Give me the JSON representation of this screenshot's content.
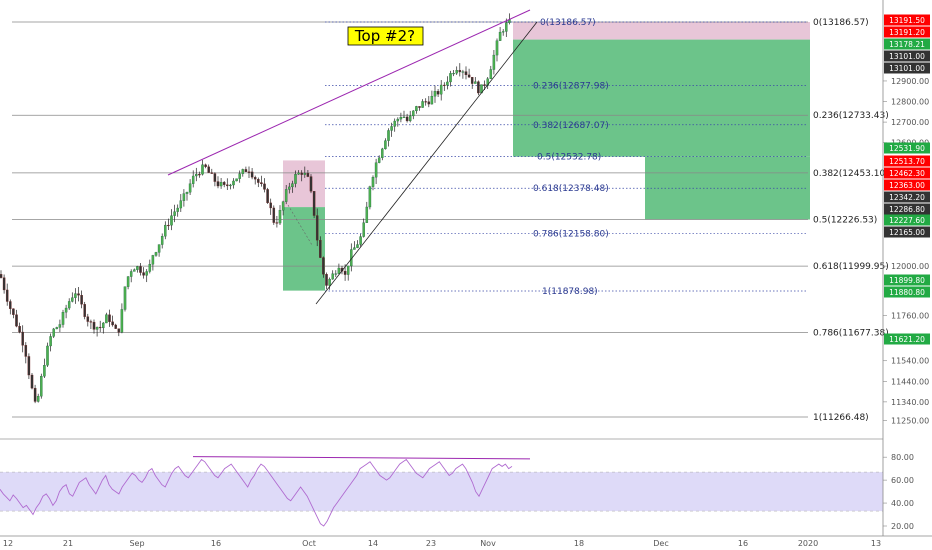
{
  "chart_data": {
    "type": "candlestick",
    "symbol": "",
    "annotation": "Top #2?",
    "price_axis": {
      "range": [
        11180,
        13300
      ],
      "ticks": [
        13300,
        13191.5,
        12900,
        12800,
        12700,
        12600,
        12000,
        11760,
        11540,
        11440,
        11340,
        11250
      ],
      "tick_labels": [
        "13300.00",
        "12900.00",
        "12800.00",
        "12700.00",
        "12600.00",
        "12000.00",
        "11760.00",
        "11540.00",
        "11440.00",
        "11340.00",
        "11250.00"
      ],
      "visible_ticks": [
        13300,
        12900,
        12800,
        12700,
        12600,
        12000,
        11760,
        11540,
        11440,
        11340,
        11250
      ]
    },
    "time_axis": {
      "ticks": [
        "12",
        "21",
        "Sep",
        "16",
        "Oct",
        "14",
        "23",
        "Nov",
        "18",
        "Dec",
        "16",
        "2020",
        "13"
      ]
    },
    "fib_wide": {
      "levels": [
        {
          "label": "0(13186.57)",
          "price": 13186.57
        },
        {
          "label": "0.236(12733.43)",
          "price": 12733.43
        },
        {
          "label": "0.382(12453.10)",
          "price": 12453.1
        },
        {
          "label": "0.5(12226.53)",
          "price": 12226.53
        },
        {
          "label": "0.618(11999.95)",
          "price": 11999.95
        },
        {
          "label": "0.786(11677.38)",
          "price": 11677.38
        },
        {
          "label": "1(11266.48)",
          "price": 11266.48
        }
      ]
    },
    "fib_narrow": {
      "levels": [
        {
          "label": "0(13186.57)",
          "price": 13186.57
        },
        {
          "label": "0.236(12877.98)",
          "price": 12877.98
        },
        {
          "label": "0.382(12687.07)",
          "price": 12687.07
        },
        {
          "label": "0.5(12532.78)",
          "price": 12532.78
        },
        {
          "label": "0.618(12378.48)",
          "price": 12378.48
        },
        {
          "label": "0.786(12158.80)",
          "price": 12158.8
        },
        {
          "label": "1(11878.98)",
          "price": 11878.98
        }
      ]
    },
    "price_tags": [
      {
        "text": "13191.50",
        "price": 13191.5,
        "color": "#ff0000"
      },
      {
        "text": "13191.20",
        "price": 13191.2,
        "color": "#ff0000"
      },
      {
        "text": "13178.21",
        "price": 13178.21,
        "color": "#22aa44"
      },
      {
        "text": "13101.00",
        "price": 13101.0,
        "color": "#333333"
      },
      {
        "text": "13101.00",
        "price": 13101.0,
        "color": "#333333"
      },
      {
        "text": "12531.90",
        "price": 12531.9,
        "color": "#22aa44"
      },
      {
        "text": "12513.70",
        "price": 12513.7,
        "color": "#ff0000"
      },
      {
        "text": "12462.30",
        "price": 12462.3,
        "color": "#ff0000"
      },
      {
        "text": "12363.00",
        "price": 12363.0,
        "color": "#ff0000"
      },
      {
        "text": "12342.20",
        "price": 12342.2,
        "color": "#333333"
      },
      {
        "text": "12286.80",
        "price": 12286.8,
        "color": "#333333"
      },
      {
        "text": "12227.60",
        "price": 12227.6,
        "color": "#22aa44"
      },
      {
        "text": "12165.00",
        "price": 12165.0,
        "color": "#333333"
      },
      {
        "text": "11899.80",
        "price": 11899.8,
        "color": "#22aa44"
      },
      {
        "text": "11880.80",
        "price": 11880.8,
        "color": "#22aa44"
      },
      {
        "text": "11621.20",
        "price": 11621.2,
        "color": "#22aa44"
      }
    ],
    "rsi": {
      "range": [
        15,
        88
      ],
      "ticks": [
        80,
        60,
        40,
        20
      ],
      "tick_labels": [
        "80.00",
        "60.00",
        "40.00",
        "20.00"
      ],
      "band": [
        33,
        67
      ],
      "values": [
        52,
        48,
        45,
        42,
        47,
        44,
        40,
        36,
        38,
        34,
        30,
        36,
        40,
        46,
        48,
        44,
        38,
        42,
        50,
        54,
        56,
        48,
        46,
        52,
        58,
        60,
        62,
        56,
        52,
        48,
        54,
        60,
        64,
        56,
        52,
        50,
        48,
        54,
        58,
        62,
        66,
        64,
        60,
        58,
        62,
        68,
        70,
        64,
        60,
        56,
        54,
        60,
        66,
        70,
        72,
        68,
        64,
        62,
        66,
        70,
        74,
        78,
        76,
        72,
        68,
        64,
        62,
        66,
        70,
        72,
        74,
        70,
        66,
        62,
        58,
        54,
        60,
        64,
        70,
        74,
        72,
        68,
        64,
        60,
        56,
        52,
        48,
        44,
        42,
        46,
        50,
        54,
        50,
        46,
        40,
        34,
        28,
        22,
        20,
        24,
        30,
        36,
        40,
        44,
        48,
        52,
        56,
        60,
        64,
        70,
        72,
        74,
        76,
        72,
        68,
        64,
        62,
        60,
        62,
        66,
        70,
        74,
        76,
        78,
        74,
        70,
        66,
        64,
        62,
        66,
        70,
        72,
        74,
        76,
        72,
        68,
        64,
        66,
        70,
        72,
        74,
        70,
        64,
        58,
        50,
        46,
        52,
        58,
        64,
        70,
        72,
        74,
        72,
        74,
        70,
        72
      ]
    },
    "colors": {
      "up": "#26a69a",
      "down": "#ef5350",
      "trendline": "#9c27b0",
      "rsi_line": "#b06bd0",
      "rsi_band": "#d8d4f7",
      "fib_zone_red": "#e8c6d8",
      "fib_zone_green": "#6cc48a"
    }
  },
  "annotations": {
    "label": "Top #2?"
  }
}
